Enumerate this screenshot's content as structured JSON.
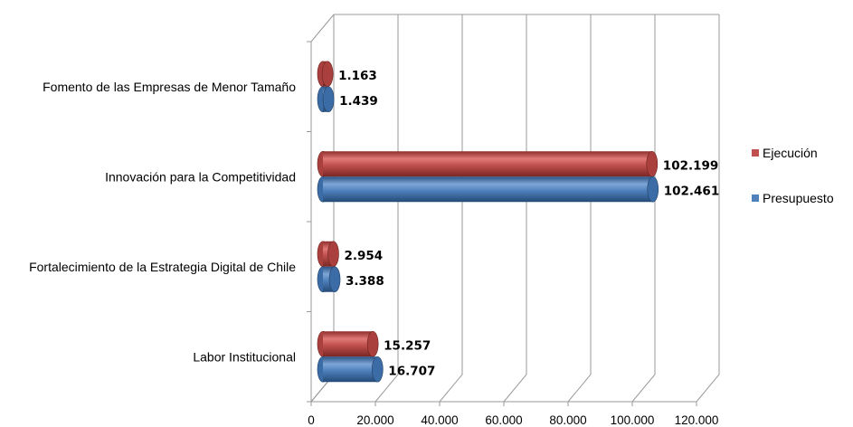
{
  "chart_data": {
    "type": "bar",
    "orientation": "horizontal",
    "style": "3d-cylinder",
    "categories": [
      "Fomento de las Empresas de Menor Tamaño",
      "Innovación para la Competitividad",
      "Fortalecimiento de la Estrategia Digital de Chile",
      "Labor Institucional"
    ],
    "series": [
      {
        "name": "Ejecución",
        "color": "#C0504D",
        "values": [
          1163,
          102199,
          2954,
          15257
        ],
        "labels": [
          "1.163",
          "102.199",
          "2.954",
          "15.257"
        ]
      },
      {
        "name": "Presupuesto",
        "color": "#4F81BD",
        "values": [
          1439,
          102461,
          3388,
          16707
        ],
        "labels": [
          "1.439",
          "102.461",
          "3.388",
          "16.707"
        ]
      }
    ],
    "xlim": [
      0,
      120000
    ],
    "xticks": [
      0,
      20000,
      40000,
      60000,
      80000,
      100000,
      120000
    ],
    "xtick_labels": [
      "0",
      "20.000",
      "40.000",
      "60.000",
      "80.000",
      "100.000",
      "120.000"
    ],
    "grid": true,
    "legend_position": "right"
  }
}
